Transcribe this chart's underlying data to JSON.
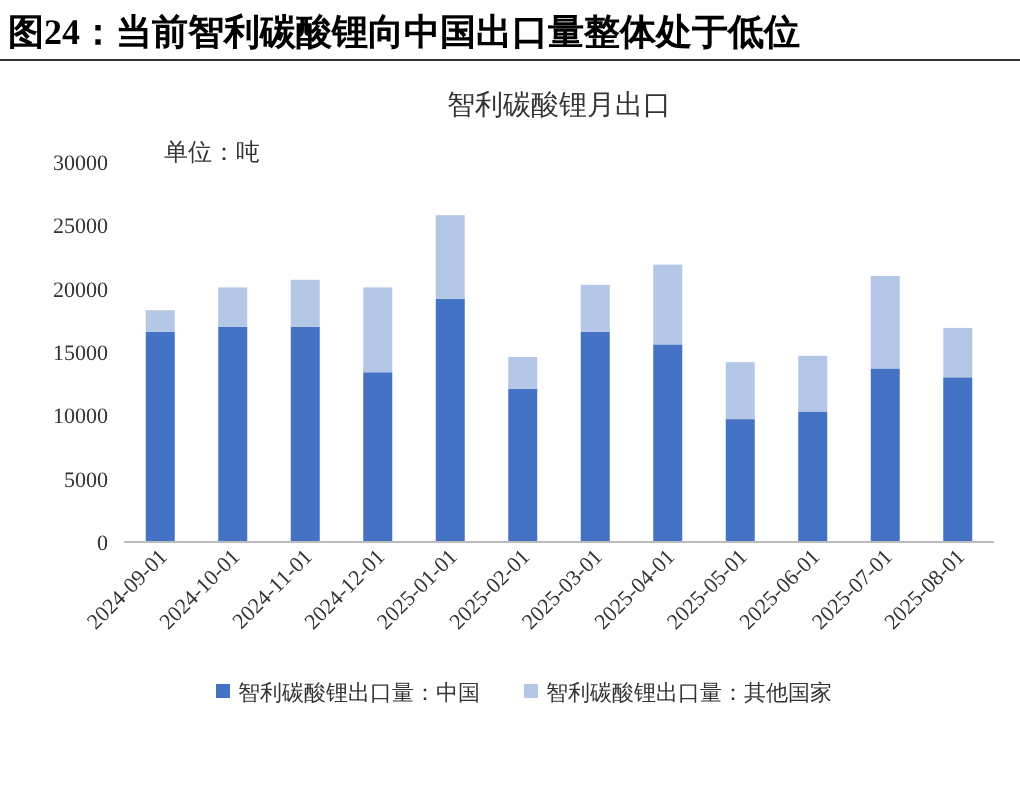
{
  "chart_data": {
    "type": "bar",
    "stacked": true,
    "title": "图24：当前智利碳酸锂向中国出口量整体处于低位",
    "subtitle": "智利碳酸锂月出口",
    "annotations": [
      "单位：吨"
    ],
    "categories": [
      "2024-09-01",
      "2024-10-01",
      "2024-11-01",
      "2024-12-01",
      "2025-01-01",
      "2025-02-01",
      "2025-03-01",
      "2025-04-01",
      "2025-05-01",
      "2025-06-01",
      "2025-07-01",
      "2025-08-01"
    ],
    "series": [
      {
        "name": "智利碳酸锂出口量：中国",
        "color": "#4472c4",
        "values": [
          16600,
          17000,
          17000,
          13400,
          19200,
          12100,
          16600,
          15600,
          9700,
          10300,
          13700,
          13000
        ]
      },
      {
        "name": "智利碳酸锂出口量：其他国家",
        "color": "#b4c7e7",
        "values": [
          1700,
          3100,
          3700,
          6700,
          6600,
          2500,
          3700,
          6300,
          4500,
          4400,
          7300,
          3900
        ]
      }
    ],
    "ylim": [
      0,
      30000
    ],
    "yticks": [
      0,
      5000,
      10000,
      15000,
      20000,
      25000,
      30000
    ],
    "grid": false,
    "legend": "bottom"
  }
}
